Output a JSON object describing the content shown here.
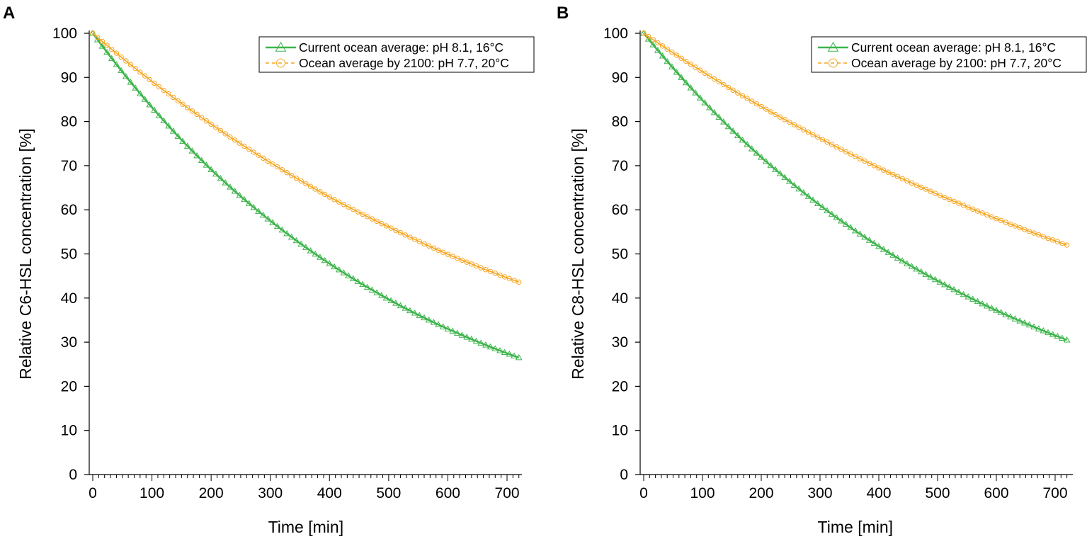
{
  "chart_data": [
    {
      "type": "line",
      "panel": "A",
      "title": "",
      "xlabel": "Time [min]",
      "ylabel": "Relative C6-HSL concentration [%]",
      "xlim": [
        0,
        720
      ],
      "ylim": [
        0,
        100
      ],
      "xticks": [
        "0",
        "100",
        "200",
        "300",
        "400",
        "500",
        "600",
        "700"
      ],
      "yticks": [
        "0",
        "10",
        "20",
        "30",
        "40",
        "50",
        "60",
        "70",
        "80",
        "90",
        "100"
      ],
      "legend_position": "top-right",
      "series": [
        {
          "name": "Current ocean average: pH 8.1, 16°C",
          "color": "#3cb44b",
          "marker": "triangle",
          "x": [
            0,
            100,
            200,
            300,
            400,
            500,
            600,
            720
          ],
          "y": [
            100,
            83.2,
            69.1,
            57.5,
            47.8,
            39.7,
            33.0,
            26.5
          ]
        },
        {
          "name": "Ocean average by 2100: pH 7.7, 20°C",
          "color": "#f5a623",
          "marker": "circle",
          "x": [
            0,
            100,
            200,
            300,
            400,
            500,
            600,
            720
          ],
          "y": [
            100,
            89.1,
            79.4,
            70.7,
            62.9,
            56.1,
            49.9,
            43.6
          ]
        }
      ]
    },
    {
      "type": "line",
      "panel": "B",
      "title": "",
      "xlabel": "Time [min]",
      "ylabel": "Relative C8-HSL concentration [%]",
      "xlim": [
        0,
        720
      ],
      "ylim": [
        0,
        100
      ],
      "xticks": [
        "0",
        "100",
        "200",
        "300",
        "400",
        "500",
        "600",
        "700"
      ],
      "yticks": [
        "0",
        "10",
        "20",
        "30",
        "40",
        "50",
        "60",
        "70",
        "80",
        "90",
        "100"
      ],
      "legend_position": "top-right",
      "series": [
        {
          "name": "Current ocean average: pH 8.1, 16°C",
          "color": "#3cb44b",
          "marker": "triangle",
          "x": [
            0,
            100,
            200,
            300,
            400,
            500,
            600,
            720
          ],
          "y": [
            100,
            84.8,
            71.9,
            61.0,
            51.7,
            43.9,
            37.2,
            30.5
          ]
        },
        {
          "name": "Ocean average by 2100: pH 7.7, 20°C",
          "color": "#f5a623",
          "marker": "circle",
          "x": [
            0,
            100,
            200,
            300,
            400,
            500,
            600,
            720
          ],
          "y": [
            100,
            91.3,
            83.4,
            76.2,
            69.5,
            63.5,
            58.0,
            52.0
          ]
        }
      ]
    }
  ]
}
